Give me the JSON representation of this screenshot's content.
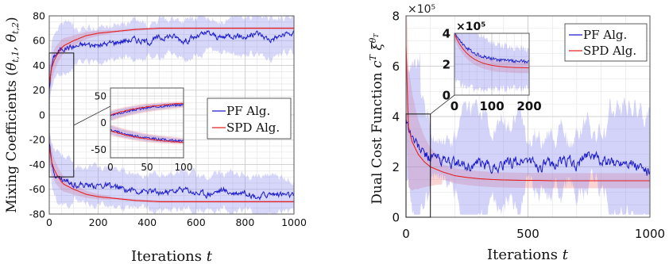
{
  "chart_data": [
    {
      "type": "line",
      "ylabel": "Mixing Coefficients (θ_{t,1}, θ_{t,2})",
      "ylabel_main": "Mixing Coefficients (",
      "ylabel_math": "θt,1, θt,2",
      "xlabel": "Iterations t",
      "xlabel_text": "Iterations",
      "xlabel_var": "t",
      "xlim": [
        0,
        1000
      ],
      "ylim": [
        -80,
        80
      ],
      "xticks": [
        0,
        200,
        400,
        600,
        800,
        1000
      ],
      "yticks": [
        -80,
        -60,
        -40,
        -20,
        0,
        20,
        40,
        60,
        80
      ],
      "grid": true,
      "legend": {
        "position": "right",
        "entries": [
          "PF Alg.",
          "SPD Alg."
        ]
      },
      "series": [
        {
          "name": "PF Alg.",
          "color": "#1a1acc",
          "x": [
            0,
            10,
            20,
            30,
            40,
            50,
            60,
            80,
            100,
            150,
            200,
            250,
            300,
            350,
            400,
            450,
            500,
            550,
            600,
            650,
            700,
            750,
            800,
            850,
            900,
            950,
            1000
          ],
          "y_upper": [
            22,
            40,
            47,
            50,
            52,
            53,
            54,
            55,
            55,
            57,
            56,
            58,
            60,
            61,
            59,
            62,
            64,
            60,
            63,
            66,
            62,
            65,
            63,
            66,
            61,
            64,
            66
          ],
          "y_lower": [
            -22,
            -40,
            -46,
            -49,
            -51,
            -52,
            -53,
            -54,
            -55,
            -57,
            -57,
            -58,
            -60,
            -61,
            -62,
            -63,
            -62,
            -60,
            -63,
            -64,
            -61,
            -63,
            -62,
            -66,
            -64,
            -64,
            -66
          ]
        },
        {
          "name": "SPD Alg.",
          "color": "#e52222",
          "x": [
            0,
            10,
            20,
            30,
            40,
            50,
            60,
            80,
            100,
            150,
            200,
            250,
            300,
            350,
            400,
            450,
            500,
            550,
            600,
            650,
            700,
            750,
            800,
            850,
            900,
            950,
            1000
          ],
          "y_upper": [
            25,
            38,
            44,
            48,
            51,
            54,
            56,
            58,
            60,
            64,
            66,
            67,
            68,
            69,
            69.5,
            70,
            70,
            70,
            70,
            70,
            70,
            70,
            70,
            70,
            70,
            70,
            70
          ],
          "y_lower": [
            -25,
            -38,
            -44,
            -48,
            -51,
            -54,
            -56,
            -58,
            -60,
            -64,
            -66,
            -67,
            -68,
            -69,
            -69.5,
            -70,
            -70,
            -70,
            -70,
            -70,
            -70,
            -70,
            -70,
            -70,
            -70,
            -70,
            -70
          ]
        }
      ],
      "zoom_box": {
        "xlim": [
          0,
          100
        ],
        "ylim": [
          -50,
          50
        ]
      },
      "inset": {
        "xlim": [
          0,
          100
        ],
        "ylim": [
          -65,
          65
        ],
        "xticks": [
          0,
          50,
          100
        ],
        "yticks": [
          -50,
          0,
          50
        ]
      }
    },
    {
      "type": "line",
      "ylabel": "Dual Cost Function c^T ξ^{θ_T}",
      "ylabel_main": "Dual Cost Function ",
      "ylabel_math": "cT ξθT",
      "xlabel": "Iterations t",
      "xlabel_text": "Iterations",
      "xlabel_var": "t",
      "xlim": [
        0,
        1000
      ],
      "ylim": [
        0,
        8
      ],
      "y_multiplier": "×10⁵",
      "xticks": [
        0,
        500,
        1000
      ],
      "yticks": [
        0,
        2,
        4,
        6,
        8
      ],
      "grid": true,
      "legend": {
        "position": "top-right",
        "entries": [
          "PF Alg.",
          "SPD Alg."
        ]
      },
      "series": [
        {
          "name": "PF Alg.",
          "color": "#1a1acc",
          "x": [
            0,
            10,
            25,
            50,
            75,
            100,
            150,
            200,
            250,
            300,
            350,
            400,
            450,
            500,
            550,
            600,
            650,
            700,
            750,
            800,
            850,
            900,
            950,
            1000
          ],
          "y": [
            4.0,
            3.6,
            3.2,
            2.8,
            2.5,
            2.4,
            2.3,
            2.1,
            2.0,
            2.1,
            2.0,
            2.1,
            2.2,
            2.3,
            2.0,
            2.1,
            2.3,
            2.0,
            2.6,
            2.2,
            2.1,
            2.3,
            2.0,
            1.75
          ]
        },
        {
          "name": "SPD Alg.",
          "color": "#e52222",
          "x": [
            0,
            10,
            25,
            50,
            75,
            100,
            150,
            200,
            250,
            300,
            350,
            400,
            450,
            500,
            550,
            600,
            650,
            700,
            750,
            800,
            850,
            900,
            950,
            1000
          ],
          "y": [
            6.8,
            3.6,
            3.0,
            2.5,
            2.2,
            2.0,
            1.8,
            1.65,
            1.58,
            1.53,
            1.5,
            1.48,
            1.47,
            1.46,
            1.46,
            1.45,
            1.45,
            1.45,
            1.45,
            1.45,
            1.45,
            1.45,
            1.45,
            1.45
          ]
        }
      ],
      "zoom_box": {
        "xlim": [
          0,
          100
        ],
        "ylim": [
          0,
          4.1
        ]
      },
      "inset": {
        "xlim": [
          0,
          200
        ],
        "ylim": [
          0,
          4
        ],
        "xticks": [
          0,
          100,
          200
        ],
        "yticks": [
          0,
          2,
          4
        ],
        "y_multiplier": "×10⁵"
      }
    }
  ]
}
